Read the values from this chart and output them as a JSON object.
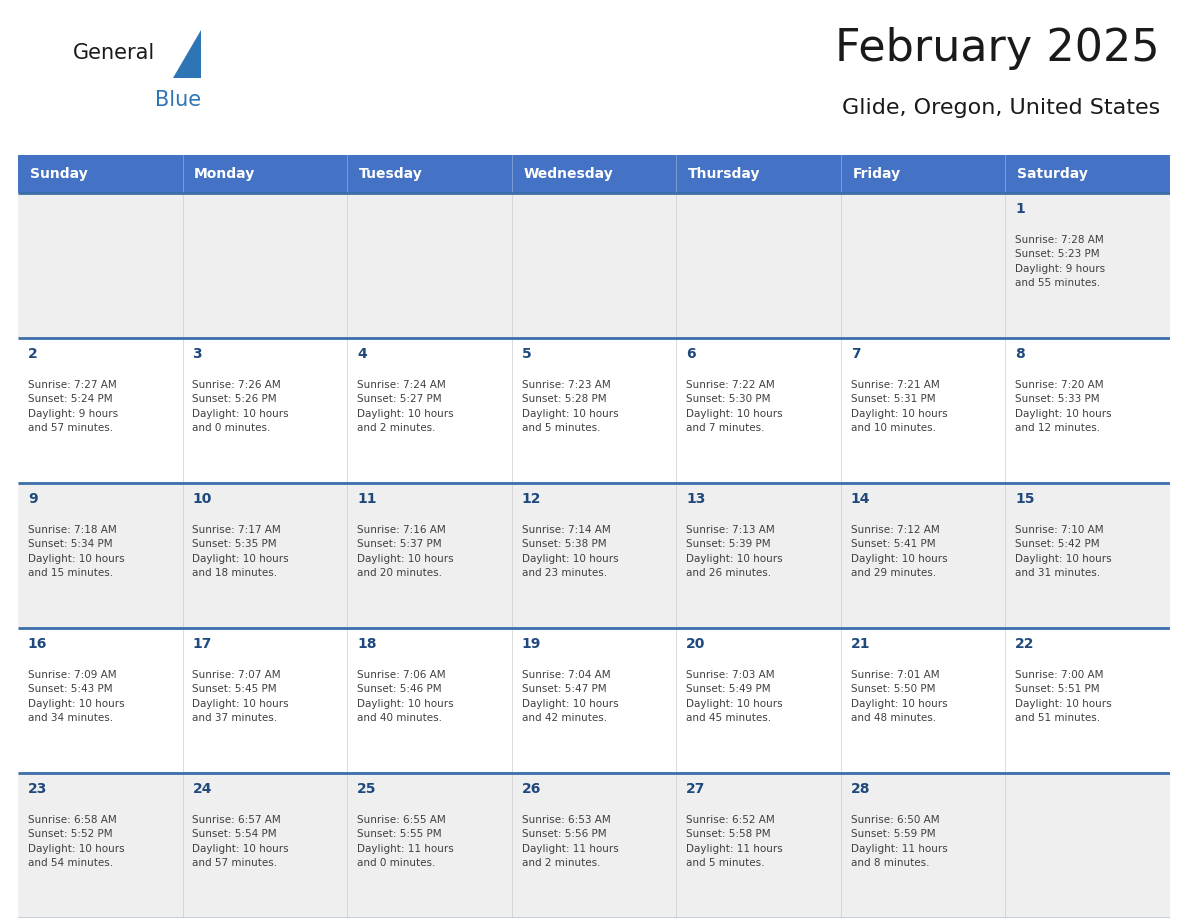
{
  "title": "February 2025",
  "subtitle": "Glide, Oregon, United States",
  "header_bg": "#4472C4",
  "header_text": "#FFFFFF",
  "cell_bg_odd": "#EFEFEF",
  "cell_bg_even": "#FFFFFF",
  "border_color": "#3A6FAA",
  "day_text_color": "#1F497D",
  "info_text_color": "#404040",
  "title_color": "#1a1a1a",
  "days_of_week": [
    "Sunday",
    "Monday",
    "Tuesday",
    "Wednesday",
    "Thursday",
    "Friday",
    "Saturday"
  ],
  "weeks": [
    [
      {
        "day": null,
        "info": null
      },
      {
        "day": null,
        "info": null
      },
      {
        "day": null,
        "info": null
      },
      {
        "day": null,
        "info": null
      },
      {
        "day": null,
        "info": null
      },
      {
        "day": null,
        "info": null
      },
      {
        "day": "1",
        "info": "Sunrise: 7:28 AM\nSunset: 5:23 PM\nDaylight: 9 hours\nand 55 minutes."
      }
    ],
    [
      {
        "day": "2",
        "info": "Sunrise: 7:27 AM\nSunset: 5:24 PM\nDaylight: 9 hours\nand 57 minutes."
      },
      {
        "day": "3",
        "info": "Sunrise: 7:26 AM\nSunset: 5:26 PM\nDaylight: 10 hours\nand 0 minutes."
      },
      {
        "day": "4",
        "info": "Sunrise: 7:24 AM\nSunset: 5:27 PM\nDaylight: 10 hours\nand 2 minutes."
      },
      {
        "day": "5",
        "info": "Sunrise: 7:23 AM\nSunset: 5:28 PM\nDaylight: 10 hours\nand 5 minutes."
      },
      {
        "day": "6",
        "info": "Sunrise: 7:22 AM\nSunset: 5:30 PM\nDaylight: 10 hours\nand 7 minutes."
      },
      {
        "day": "7",
        "info": "Sunrise: 7:21 AM\nSunset: 5:31 PM\nDaylight: 10 hours\nand 10 minutes."
      },
      {
        "day": "8",
        "info": "Sunrise: 7:20 AM\nSunset: 5:33 PM\nDaylight: 10 hours\nand 12 minutes."
      }
    ],
    [
      {
        "day": "9",
        "info": "Sunrise: 7:18 AM\nSunset: 5:34 PM\nDaylight: 10 hours\nand 15 minutes."
      },
      {
        "day": "10",
        "info": "Sunrise: 7:17 AM\nSunset: 5:35 PM\nDaylight: 10 hours\nand 18 minutes."
      },
      {
        "day": "11",
        "info": "Sunrise: 7:16 AM\nSunset: 5:37 PM\nDaylight: 10 hours\nand 20 minutes."
      },
      {
        "day": "12",
        "info": "Sunrise: 7:14 AM\nSunset: 5:38 PM\nDaylight: 10 hours\nand 23 minutes."
      },
      {
        "day": "13",
        "info": "Sunrise: 7:13 AM\nSunset: 5:39 PM\nDaylight: 10 hours\nand 26 minutes."
      },
      {
        "day": "14",
        "info": "Sunrise: 7:12 AM\nSunset: 5:41 PM\nDaylight: 10 hours\nand 29 minutes."
      },
      {
        "day": "15",
        "info": "Sunrise: 7:10 AM\nSunset: 5:42 PM\nDaylight: 10 hours\nand 31 minutes."
      }
    ],
    [
      {
        "day": "16",
        "info": "Sunrise: 7:09 AM\nSunset: 5:43 PM\nDaylight: 10 hours\nand 34 minutes."
      },
      {
        "day": "17",
        "info": "Sunrise: 7:07 AM\nSunset: 5:45 PM\nDaylight: 10 hours\nand 37 minutes."
      },
      {
        "day": "18",
        "info": "Sunrise: 7:06 AM\nSunset: 5:46 PM\nDaylight: 10 hours\nand 40 minutes."
      },
      {
        "day": "19",
        "info": "Sunrise: 7:04 AM\nSunset: 5:47 PM\nDaylight: 10 hours\nand 42 minutes."
      },
      {
        "day": "20",
        "info": "Sunrise: 7:03 AM\nSunset: 5:49 PM\nDaylight: 10 hours\nand 45 minutes."
      },
      {
        "day": "21",
        "info": "Sunrise: 7:01 AM\nSunset: 5:50 PM\nDaylight: 10 hours\nand 48 minutes."
      },
      {
        "day": "22",
        "info": "Sunrise: 7:00 AM\nSunset: 5:51 PM\nDaylight: 10 hours\nand 51 minutes."
      }
    ],
    [
      {
        "day": "23",
        "info": "Sunrise: 6:58 AM\nSunset: 5:52 PM\nDaylight: 10 hours\nand 54 minutes."
      },
      {
        "day": "24",
        "info": "Sunrise: 6:57 AM\nSunset: 5:54 PM\nDaylight: 10 hours\nand 57 minutes."
      },
      {
        "day": "25",
        "info": "Sunrise: 6:55 AM\nSunset: 5:55 PM\nDaylight: 11 hours\nand 0 minutes."
      },
      {
        "day": "26",
        "info": "Sunrise: 6:53 AM\nSunset: 5:56 PM\nDaylight: 11 hours\nand 2 minutes."
      },
      {
        "day": "27",
        "info": "Sunrise: 6:52 AM\nSunset: 5:58 PM\nDaylight: 11 hours\nand 5 minutes."
      },
      {
        "day": "28",
        "info": "Sunrise: 6:50 AM\nSunset: 5:59 PM\nDaylight: 11 hours\nand 8 minutes."
      },
      {
        "day": null,
        "info": null
      }
    ]
  ],
  "logo_color_general": "#1a1a1a",
  "logo_color_blue": "#2E75B6",
  "logo_triangle_color": "#2E75B6",
  "logo_text_general": "General",
  "logo_text_blue": "Blue"
}
